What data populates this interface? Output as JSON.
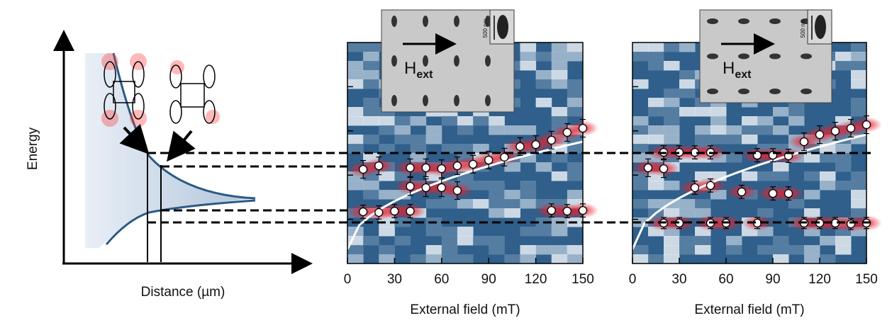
{
  "chart_data": [
    {
      "type": "schematic",
      "xlabel": "Distance (µm)",
      "ylabel": "Energy"
    },
    {
      "type": "scatter",
      "xlabel": "External field (mT)",
      "xlim": [
        0,
        150
      ],
      "xticks": [
        0,
        30,
        60,
        90,
        120,
        150
      ],
      "ylim": [
        0,
        10
      ],
      "inset_label": "H",
      "inset_subscript": "ext",
      "scale_bar": "500 nm",
      "marker_color": "#ffffff",
      "x": [
        10,
        20,
        40,
        50,
        60,
        70,
        80,
        90,
        100,
        110,
        120,
        130,
        140,
        150,
        40,
        50,
        60,
        70,
        10,
        20,
        30,
        40,
        130,
        140,
        150
      ],
      "values": [
        4.26,
        4.42,
        4.33,
        4.33,
        4.29,
        4.42,
        4.49,
        4.68,
        4.81,
        5.29,
        5.38,
        5.58,
        5.93,
        6.12,
        3.49,
        3.43,
        3.43,
        3.3,
        2.34,
        2.31,
        2.37,
        2.37,
        2.4,
        2.37,
        2.4
      ],
      "errors": [
        0.4,
        0.4,
        0.4,
        0.4,
        0.4,
        0.4,
        0.4,
        0.4,
        0.4,
        0.4,
        0.4,
        0.4,
        0.4,
        0.4,
        0.4,
        0.4,
        0.4,
        0.4,
        0.3,
        0.3,
        0.3,
        0.3,
        0.3,
        0.3,
        0.3
      ]
    },
    {
      "type": "scatter",
      "xlabel": "External field (mT)",
      "xlim": [
        0,
        150
      ],
      "xticks": [
        0,
        30,
        60,
        90,
        120,
        150
      ],
      "ylim": [
        0,
        10
      ],
      "inset_label": "H",
      "inset_subscript": "ext",
      "scale_bar": "500 nm",
      "marker_color": "#ffffff",
      "x": [
        10,
        20,
        20,
        30,
        40,
        50,
        80,
        90,
        100,
        110,
        120,
        130,
        140,
        150,
        40,
        50,
        70,
        90,
        100,
        20,
        30,
        50,
        60,
        80,
        110,
        120,
        130,
        140,
        150
      ],
      "values": [
        4.33,
        4.29,
        5.03,
        5.03,
        5.03,
        5.03,
        4.9,
        4.9,
        4.87,
        5.51,
        5.83,
        5.99,
        6.12,
        6.28,
        3.43,
        3.53,
        3.24,
        3.17,
        3.17,
        1.83,
        1.83,
        1.83,
        1.83,
        1.83,
        1.83,
        1.83,
        1.83,
        1.79,
        1.83
      ],
      "errors": [
        0.4,
        0.4,
        0.3,
        0.3,
        0.3,
        0.3,
        0.3,
        0.3,
        0.3,
        0.4,
        0.4,
        0.4,
        0.4,
        0.4,
        0.3,
        0.3,
        0.3,
        0.3,
        0.3,
        0.25,
        0.25,
        0.25,
        0.25,
        0.25,
        0.25,
        0.25,
        0.25,
        0.25,
        0.25
      ]
    }
  ]
}
